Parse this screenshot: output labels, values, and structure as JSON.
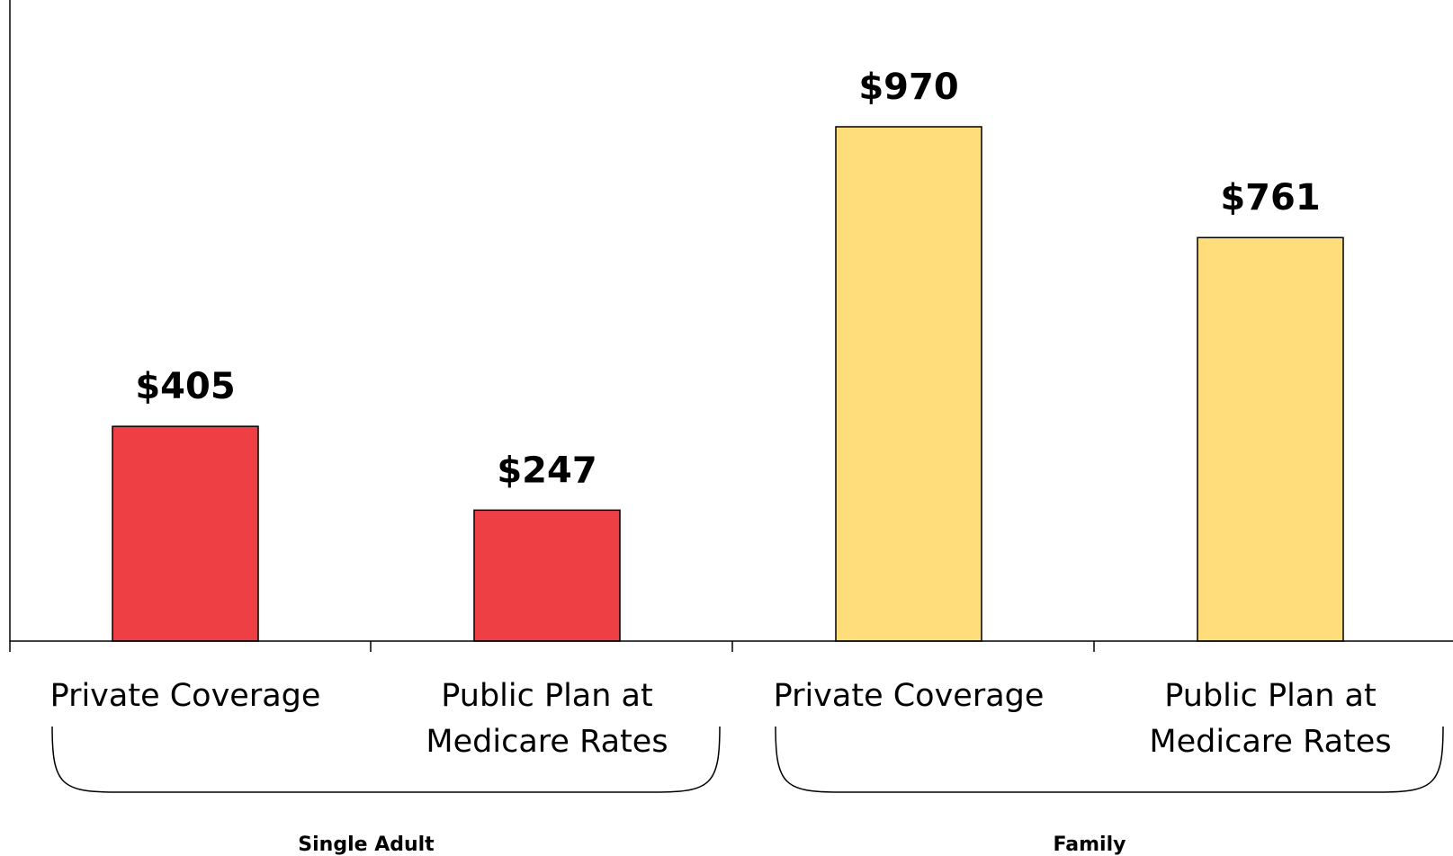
{
  "chart_data": {
    "type": "bar",
    "categories": [
      "Private Coverage",
      "Public Plan at Medicare Rates",
      "Private Coverage",
      "Public Plan at Medicare Rates"
    ],
    "category_lines": [
      [
        "Private Coverage"
      ],
      [
        "Public Plan at",
        "Medicare Rates"
      ],
      [
        "Private Coverage"
      ],
      [
        "Public Plan at",
        "Medicare Rates"
      ]
    ],
    "values": [
      405,
      247,
      970,
      761
    ],
    "value_labels": [
      "$405",
      "$247",
      "$970",
      "$761"
    ],
    "groups": [
      {
        "name": "Single Adult",
        "categories": [
          0,
          1
        ],
        "color": "#EE4044"
      },
      {
        "name": "Family",
        "categories": [
          2,
          3
        ],
        "color": "#FEDD7A"
      }
    ],
    "ylim": [
      0,
      1200
    ],
    "grid": false,
    "legend": "none",
    "title": "",
    "xlabel": "",
    "ylabel": ""
  }
}
